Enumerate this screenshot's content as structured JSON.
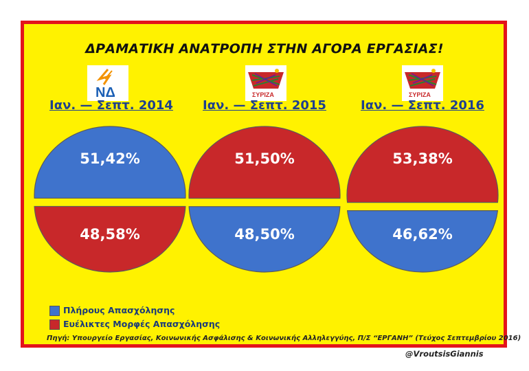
{
  "header": {
    "title": "ΔΡΑΜΑΤΙΚΗ ΑΝΑΤΡΟΠΗ ΣΤΗΝ ΑΓΟΡΑ ΕΡΓΑΣΙΑΣ!"
  },
  "logos": [
    {
      "text": "ΝΔ",
      "icon": "nd-party-logo-icon"
    },
    {
      "text": "ΣΥΡΙΖΑ",
      "icon": "syriza-party-logo-icon"
    },
    {
      "text": "ΣΥΡΙΖΑ",
      "icon": "syriza-party-logo-icon"
    }
  ],
  "colors": {
    "full": "#3f73cc",
    "flexible": "#c8282a",
    "background": "#fff200",
    "border": "#e3141b"
  },
  "chart_data": [
    {
      "type": "pie",
      "title": "Ιαν. — Σεπτ. 2014",
      "slices": [
        {
          "name": "Πλήρους Απασχόλησης",
          "value": 51.42,
          "label": "51,42%"
        },
        {
          "name": "Ευέλικτες Μορφές Απασχόλησης",
          "value": 48.58,
          "label": "48,58%"
        }
      ]
    },
    {
      "type": "pie",
      "title": "Ιαν. — Σεπτ. 2015",
      "slices": [
        {
          "name": "Πλήρους Απασχόλησης",
          "value": 48.5,
          "label": "48,50%"
        },
        {
          "name": "Ευέλικτες Μορφές Απασχόλησης",
          "value": 51.5,
          "label": "51,50%"
        }
      ]
    },
    {
      "type": "pie",
      "title": "Ιαν. — Σεπτ. 2016",
      "slices": [
        {
          "name": "Πλήρους Απασχόλησης",
          "value": 46.62,
          "label": "46,62%"
        },
        {
          "name": "Ευέλικτες Μορφές Απασχόλησης",
          "value": 53.38,
          "label": "53,38%"
        }
      ]
    }
  ],
  "legend": [
    {
      "label": "Πλήρους Απασχόλησης",
      "color": "#3f73cc"
    },
    {
      "label": "Ευέλικτες Μορφές Απασχόλησης",
      "color": "#c8282a"
    }
  ],
  "footer": {
    "source": "Πηγή: Υπουργείο Εργασίας, Κοινωνικής Ασφάλισης & Κοινωνικής Αλληλεγγύης, Π/Σ “ΕΡΓΑΝΗ” (Τεύχος Σεπτεμβρίου 2016)",
    "handle": "@VroutsisGiannis"
  }
}
